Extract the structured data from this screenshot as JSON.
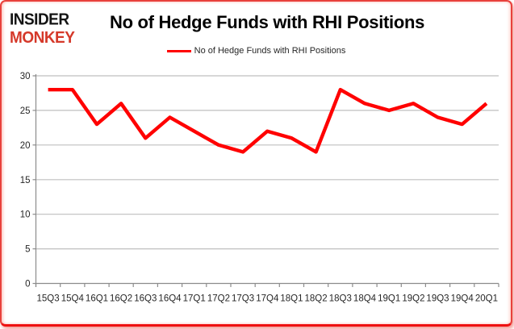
{
  "logo": {
    "line1": "INSIDER",
    "line2": "MONKEY"
  },
  "title": "No of Hedge Funds with RHI Positions",
  "legend": {
    "label": "No of Hedge Funds with RHI Positions"
  },
  "colors": {
    "line": "#ff0000",
    "logo_black": "#141414",
    "logo_red": "#d5392a",
    "grid": "#bfbfbf",
    "axis": "#8c8c8c",
    "tick_label": "#262626",
    "frame_red": "#e8413c"
  },
  "chart_data": {
    "type": "line",
    "title": "No of Hedge Funds with RHI Positions",
    "categories": [
      "15Q3",
      "15Q4",
      "16Q1",
      "16Q2",
      "16Q3",
      "16Q4",
      "17Q1",
      "17Q2",
      "17Q3",
      "17Q4",
      "18Q1",
      "18Q2",
      "18Q3",
      "18Q4",
      "19Q1",
      "19Q2",
      "19Q3",
      "19Q4",
      "20Q1"
    ],
    "series": [
      {
        "name": "No of Hedge Funds with RHI Positions",
        "values": [
          28,
          28,
          23,
          26,
          21,
          24,
          22,
          20,
          19,
          22,
          21,
          19,
          28,
          26,
          25,
          26,
          24,
          23,
          26
        ]
      }
    ],
    "xlabel": "",
    "ylabel": "",
    "ylim": [
      0,
      30
    ],
    "yticks": [
      0,
      5,
      10,
      15,
      20,
      25,
      30
    ],
    "grid": true,
    "legend_position": "top-center"
  }
}
